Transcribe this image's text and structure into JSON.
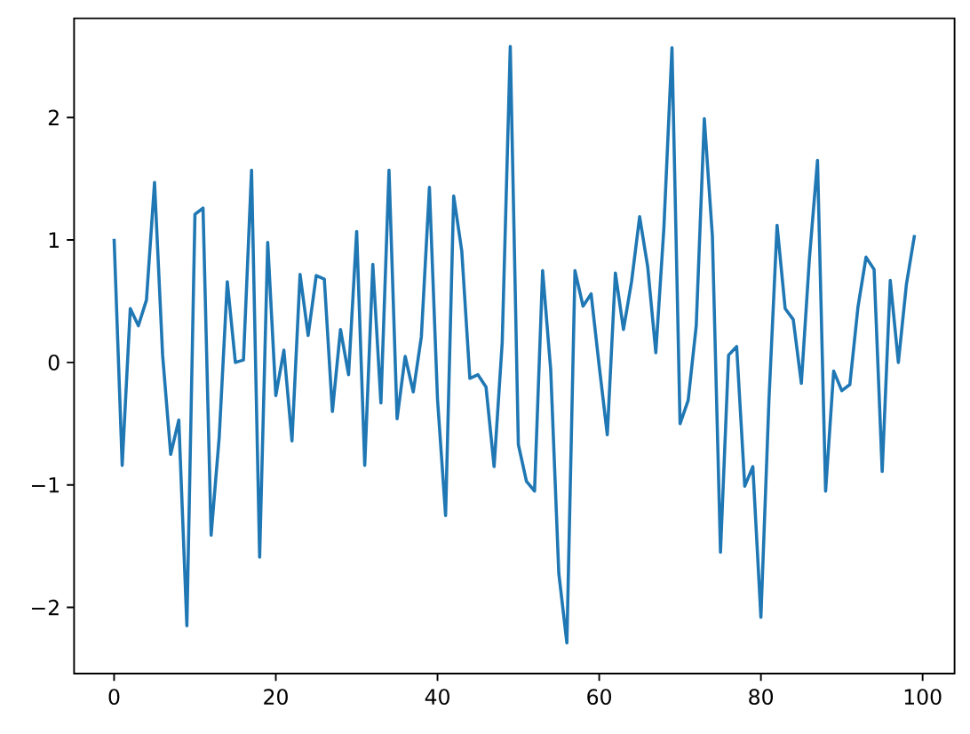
{
  "chart_data": {
    "type": "line",
    "x": [
      0,
      1,
      2,
      3,
      4,
      5,
      6,
      7,
      8,
      9,
      10,
      11,
      12,
      13,
      14,
      15,
      16,
      17,
      18,
      19,
      20,
      21,
      22,
      23,
      24,
      25,
      26,
      27,
      28,
      29,
      30,
      31,
      32,
      33,
      34,
      35,
      36,
      37,
      38,
      39,
      40,
      41,
      42,
      43,
      44,
      45,
      46,
      47,
      48,
      49,
      50,
      51,
      52,
      53,
      54,
      55,
      56,
      57,
      58,
      59,
      60,
      61,
      62,
      63,
      64,
      65,
      66,
      67,
      68,
      69,
      70,
      71,
      72,
      73,
      74,
      75,
      76,
      77,
      78,
      79,
      80,
      81,
      82,
      83,
      84,
      85,
      86,
      87,
      88,
      89,
      90,
      91,
      92,
      93,
      94,
      95,
      96,
      97,
      98,
      99
    ],
    "values": [
      1.01,
      -0.84,
      0.44,
      0.3,
      0.51,
      1.47,
      0.06,
      -0.75,
      -0.47,
      -2.15,
      1.21,
      1.26,
      -1.41,
      -0.61,
      0.66,
      0.0,
      0.02,
      1.57,
      -1.59,
      0.98,
      -0.27,
      0.1,
      -0.64,
      0.72,
      0.22,
      0.71,
      0.68,
      -0.4,
      0.27,
      -0.1,
      1.07,
      -0.84,
      0.8,
      -0.33,
      1.57,
      -0.46,
      0.05,
      -0.24,
      0.21,
      1.43,
      -0.3,
      -1.25,
      1.36,
      0.91,
      -0.13,
      -0.1,
      -0.2,
      -0.85,
      0.16,
      2.58,
      -0.67,
      -0.97,
      -1.05,
      0.75,
      -0.06,
      -1.72,
      -2.29,
      0.75,
      0.46,
      0.56,
      -0.03,
      -0.59,
      0.73,
      0.27,
      0.66,
      1.19,
      0.78,
      0.08,
      1.1,
      2.57,
      -0.5,
      -0.31,
      0.3,
      1.99,
      1.03,
      -1.55,
      0.06,
      0.13,
      -1.01,
      -0.85,
      -2.08,
      -0.3,
      1.12,
      0.44,
      0.35,
      -0.17,
      0.85,
      1.65,
      -1.05,
      -0.07,
      -0.23,
      -0.18,
      0.45,
      0.86,
      0.76,
      -0.89,
      0.67,
      0.0,
      0.64,
      1.04
    ],
    "color": "#1f77b4",
    "line_style": "solid",
    "xlim": [
      -4.95,
      103.95
    ],
    "ylim": [
      -2.54,
      2.81
    ],
    "xticks": [
      0,
      20,
      40,
      60,
      80,
      100
    ],
    "yticks": [
      {
        "value": -2,
        "label": "−2"
      },
      {
        "value": -1,
        "label": "−1"
      },
      0,
      1,
      2
    ]
  }
}
